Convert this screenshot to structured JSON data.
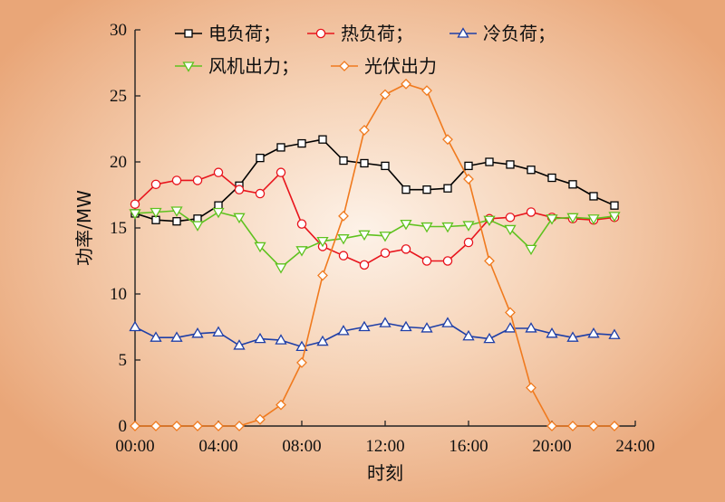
{
  "chart_data": {
    "type": "line",
    "xlabel": "时刻",
    "ylabel": "功率/MW",
    "xlim": [
      0,
      24
    ],
    "ylim": [
      0,
      30
    ],
    "xticks": [
      0,
      4,
      8,
      12,
      16,
      20,
      24
    ],
    "xtick_labels": [
      "00:00",
      "04:00",
      "08:00",
      "12:00",
      "16:00",
      "20:00",
      "24:00"
    ],
    "yticks": [
      0,
      5,
      10,
      15,
      20,
      25,
      30
    ],
    "ytick_labels": [
      "0",
      "5",
      "10",
      "15",
      "20",
      "25",
      "30"
    ],
    "grid": false,
    "legend_position": "top",
    "x": [
      0,
      1,
      2,
      3,
      4,
      5,
      6,
      7,
      8,
      9,
      10,
      11,
      12,
      13,
      14,
      15,
      16,
      17,
      18,
      19,
      20,
      21,
      22,
      23
    ],
    "series": [
      {
        "name": "电负荷；",
        "color": "#000000",
        "marker": "square",
        "values": [
          16.1,
          15.6,
          15.5,
          15.7,
          16.7,
          18.2,
          20.3,
          21.1,
          21.4,
          21.7,
          20.1,
          19.9,
          19.7,
          17.9,
          17.9,
          18.0,
          19.7,
          20.0,
          19.8,
          19.4,
          18.8,
          18.3,
          17.4,
          16.7
        ]
      },
      {
        "name": "热负荷；",
        "color": "#e8141c",
        "marker": "circle",
        "values": [
          16.8,
          18.3,
          18.6,
          18.6,
          19.2,
          17.9,
          17.6,
          19.2,
          15.3,
          13.6,
          12.9,
          12.2,
          13.1,
          13.4,
          12.5,
          12.5,
          13.9,
          15.7,
          15.8,
          16.2,
          15.8,
          15.7,
          15.6,
          15.8
        ]
      },
      {
        "name": "冷负荷；",
        "color": "#1f3fa7",
        "marker": "triangle-up",
        "values": [
          7.5,
          6.7,
          6.7,
          7.0,
          7.1,
          6.1,
          6.6,
          6.5,
          6.0,
          6.4,
          7.2,
          7.5,
          7.8,
          7.5,
          7.4,
          7.8,
          6.8,
          6.6,
          7.4,
          7.4,
          7.0,
          6.7,
          7.0,
          6.9
        ]
      },
      {
        "name": "风机出力；",
        "color": "#5fc21f",
        "marker": "triangle-down",
        "values": [
          16.1,
          16.2,
          16.3,
          15.2,
          16.2,
          15.8,
          13.6,
          12.0,
          13.3,
          14.0,
          14.2,
          14.5,
          14.4,
          15.3,
          15.1,
          15.1,
          15.2,
          15.6,
          14.9,
          13.4,
          15.7,
          15.8,
          15.7,
          15.9
        ]
      },
      {
        "name": "光伏出力",
        "color": "#f07a1e",
        "marker": "diamond",
        "values": [
          0,
          0,
          0,
          0,
          0,
          0,
          0.5,
          1.6,
          4.8,
          11.4,
          15.9,
          22.4,
          25.1,
          25.9,
          25.4,
          21.7,
          18.7,
          12.5,
          8.6,
          2.9,
          0,
          0,
          0,
          0
        ]
      }
    ]
  }
}
